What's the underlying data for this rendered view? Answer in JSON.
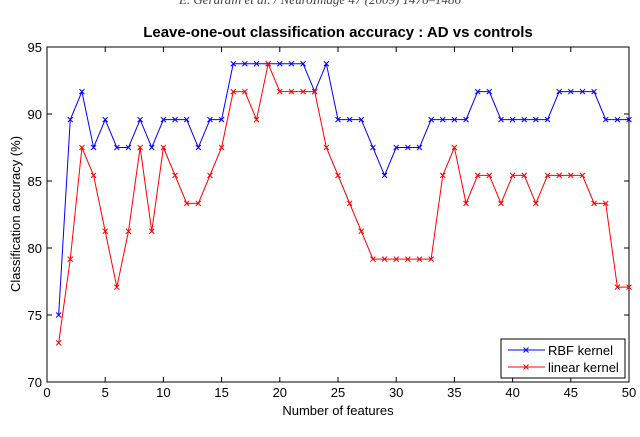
{
  "running_head": "E. Gerardin et al. / NeuroImage 47 (2009) 1476–1486",
  "chart_data": {
    "type": "line",
    "title": "Leave-one-out classification accuracy : AD vs controls",
    "xlabel": "Number of features",
    "ylabel": "Classification accuracy (%)",
    "xlim": [
      0,
      50
    ],
    "ylim": [
      70,
      95
    ],
    "xticks": [
      0,
      5,
      10,
      15,
      20,
      25,
      30,
      35,
      40,
      45,
      50
    ],
    "yticks": [
      70,
      75,
      80,
      85,
      90,
      95
    ],
    "grid": false,
    "legend_position": "bottom-right",
    "x": [
      1,
      2,
      3,
      4,
      5,
      6,
      7,
      8,
      9,
      10,
      11,
      12,
      13,
      14,
      15,
      16,
      17,
      18,
      19,
      20,
      21,
      22,
      23,
      24,
      25,
      26,
      27,
      28,
      29,
      30,
      31,
      32,
      33,
      34,
      35,
      36,
      37,
      38,
      39,
      40,
      41,
      42,
      43,
      44,
      45,
      46,
      47,
      48,
      49,
      50
    ],
    "series": [
      {
        "name": "RBF kernel",
        "color": "#0000ff",
        "marker": "x",
        "values": [
          75,
          89.58,
          91.67,
          87.5,
          89.58,
          87.5,
          87.5,
          89.58,
          87.5,
          89.58,
          89.58,
          89.58,
          87.5,
          89.58,
          89.58,
          93.75,
          93.75,
          93.75,
          93.75,
          93.75,
          93.75,
          93.75,
          91.67,
          93.75,
          89.58,
          89.58,
          89.58,
          87.5,
          85.42,
          87.5,
          87.5,
          87.5,
          89.58,
          89.58,
          89.58,
          89.58,
          91.67,
          91.67,
          89.58,
          89.58,
          89.58,
          89.58,
          89.58,
          91.67,
          91.67,
          91.67,
          91.67,
          89.58,
          89.58,
          89.58
        ]
      },
      {
        "name": "linear kernel",
        "color": "#ff0000",
        "marker": "x",
        "values": [
          72.92,
          79.17,
          87.5,
          85.42,
          81.25,
          77.08,
          81.25,
          87.5,
          81.25,
          87.5,
          85.42,
          83.33,
          83.33,
          85.42,
          87.5,
          91.67,
          91.67,
          89.58,
          93.75,
          91.67,
          91.67,
          91.67,
          91.67,
          87.5,
          85.42,
          83.33,
          81.25,
          79.17,
          79.17,
          79.17,
          79.17,
          79.17,
          79.17,
          85.42,
          87.5,
          83.33,
          85.42,
          85.42,
          83.33,
          85.42,
          85.42,
          83.33,
          85.42,
          85.42,
          85.42,
          85.42,
          83.33,
          83.33,
          77.08,
          77.08
        ]
      }
    ]
  }
}
